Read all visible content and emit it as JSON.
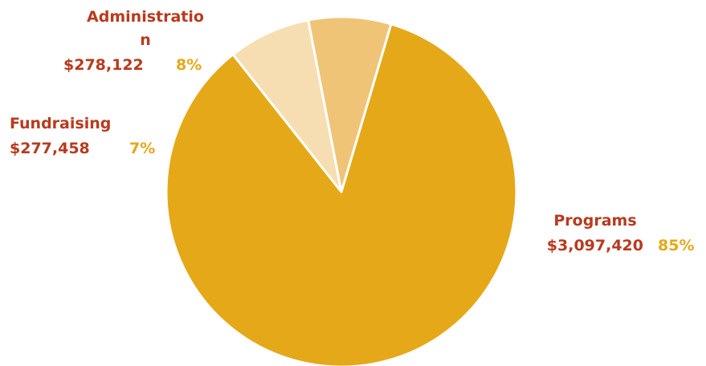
{
  "chart_data": {
    "type": "pie",
    "slices": [
      {
        "category": "Programs",
        "value": 3097420,
        "value_label": "$3,097,420",
        "percent_label": "85%",
        "color": "#E5A818"
      },
      {
        "category": "Fundraising",
        "value": 277458,
        "value_label": "$277,458",
        "percent_label": "7%",
        "color": "#F6DEB2"
      },
      {
        "category": "Administration",
        "category_lines": [
          "Administratio",
          "n"
        ],
        "value": 278122,
        "value_label": "$278,122",
        "percent_label": "8%",
        "color": "#F0C477"
      }
    ],
    "label_color": "#B83A1E",
    "percent_color": "#E5A818",
    "slice_border_color": "#ffffff"
  }
}
